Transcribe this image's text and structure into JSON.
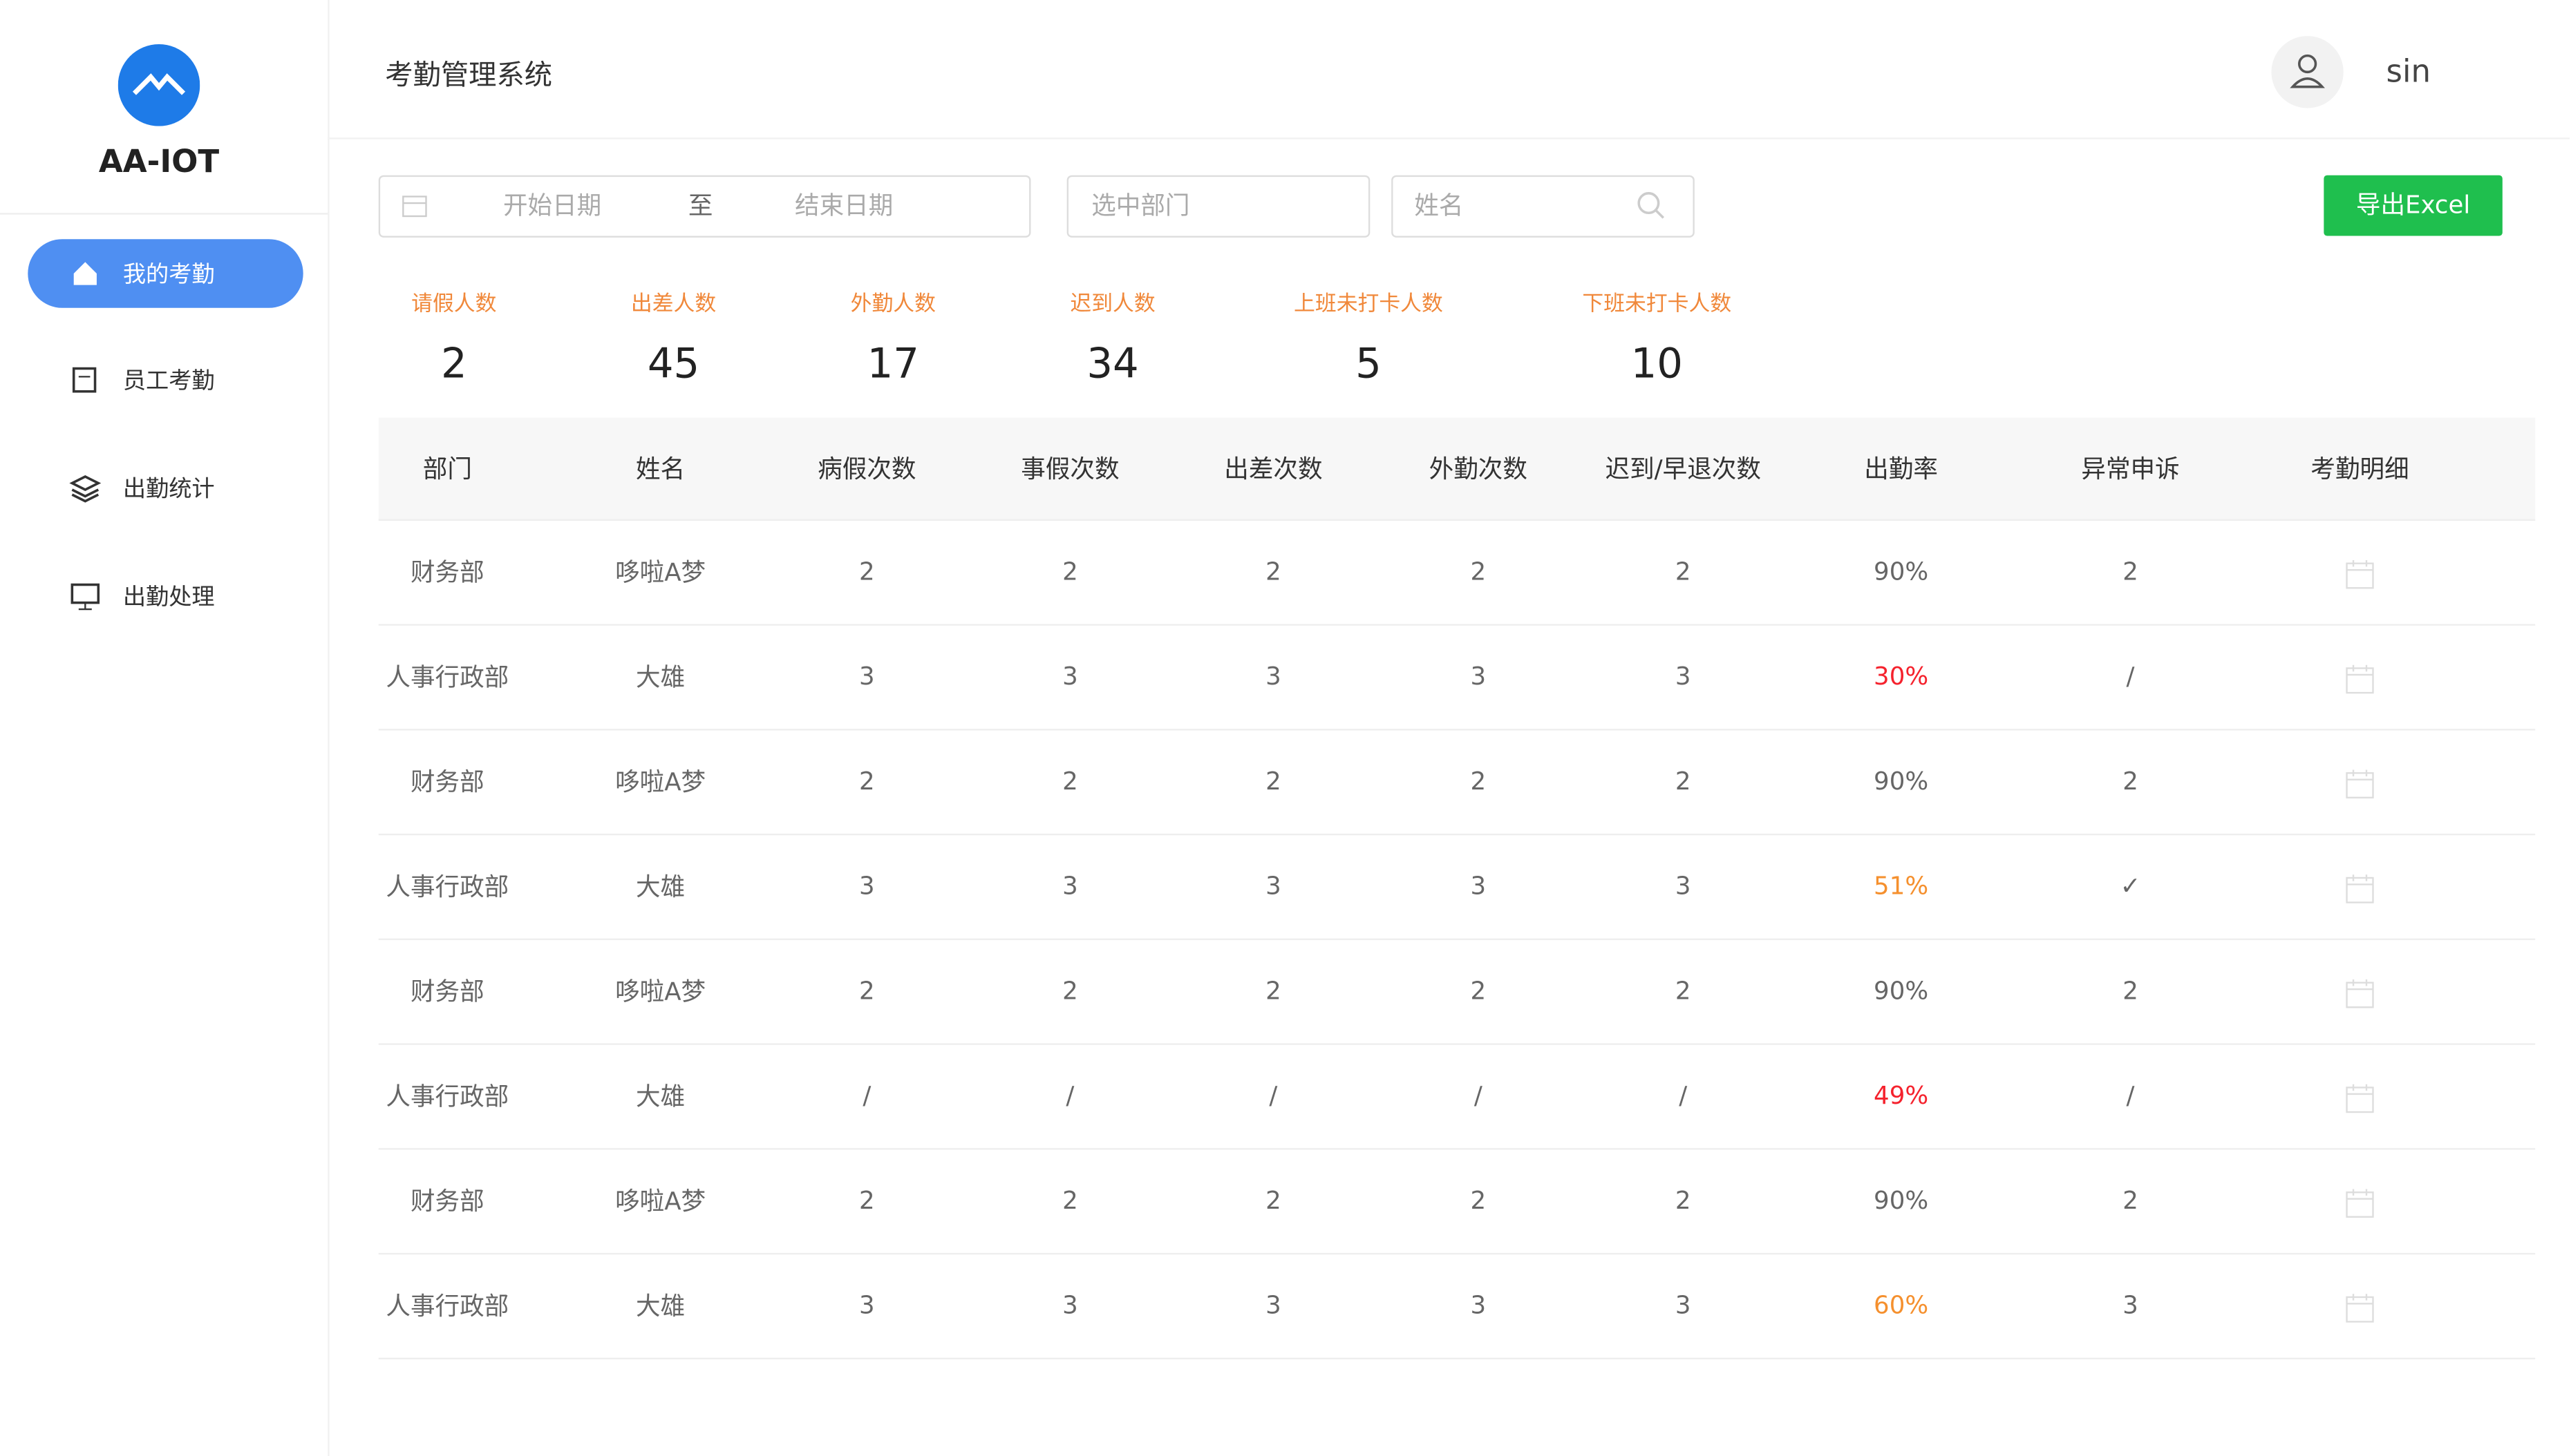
{
  "header": {
    "title": "考勤管理系统",
    "user": "sin"
  },
  "sidebar": {
    "logo": "AA-IOT",
    "nav": [
      "我的考勤",
      "员工考勤",
      "出勤统计",
      "出勤处理"
    ]
  },
  "filters": {
    "start_date": "开始日期",
    "separator": "至",
    "end_date": "结束日期",
    "department": "选中部门",
    "name": "姓名",
    "export": "导出Excel"
  },
  "stats": [
    {
      "label": "请假人数",
      "value": 2
    },
    {
      "label": "出差人数",
      "value": 45
    },
    {
      "label": "外勤人数",
      "value": 17
    },
    {
      "label": "迟到人数",
      "value": 34
    },
    {
      "label": "上班未打卡人数",
      "value": 5
    },
    {
      "label": "下班未打卡人数",
      "value": 10
    }
  ],
  "table": {
    "headers": [
      "部门",
      "姓名",
      "病假次数",
      "事假次数",
      "出差次数",
      "外勤次数",
      "迟到/早退次数",
      "出勤率",
      "异常申诉",
      "考勤明细"
    ],
    "rows": [
      [
        "财务部",
        "哆啦A梦",
        "2",
        "2",
        "2",
        "2",
        "2",
        "90%",
        "2"
      ],
      [
        "人事行政部",
        "大雄",
        "3",
        "3",
        "3",
        "3",
        "3",
        "30%",
        "/"
      ],
      [
        "财务部",
        "哆啦A梦",
        "2",
        "2",
        "2",
        "2",
        "2",
        "90%",
        "2"
      ],
      [
        "人事行政部",
        "大雄",
        "3",
        "3",
        "3",
        "3",
        "3",
        "51%",
        "✓"
      ],
      [
        "财务部",
        "哆啦A梦",
        "2",
        "2",
        "2",
        "2",
        "2",
        "90%",
        "2"
      ],
      [
        "人事行政部",
        "大雄",
        "/",
        "/",
        "/",
        "/",
        "/",
        "49%",
        "/"
      ],
      [
        "财务部",
        "哆啦A梦",
        "2",
        "2",
        "2",
        "2",
        "2",
        "90%",
        "2"
      ],
      [
        "人事行政部",
        "大雄",
        "3",
        "3",
        "3",
        "3",
        "3",
        "60%",
        "3"
      ]
    ],
    "rate_colors": [
      "#666666",
      "#f5222d",
      "#666666",
      "#f5902e",
      "#666666",
      "#f5222d",
      "#666666",
      "#f5902e"
    ]
  }
}
